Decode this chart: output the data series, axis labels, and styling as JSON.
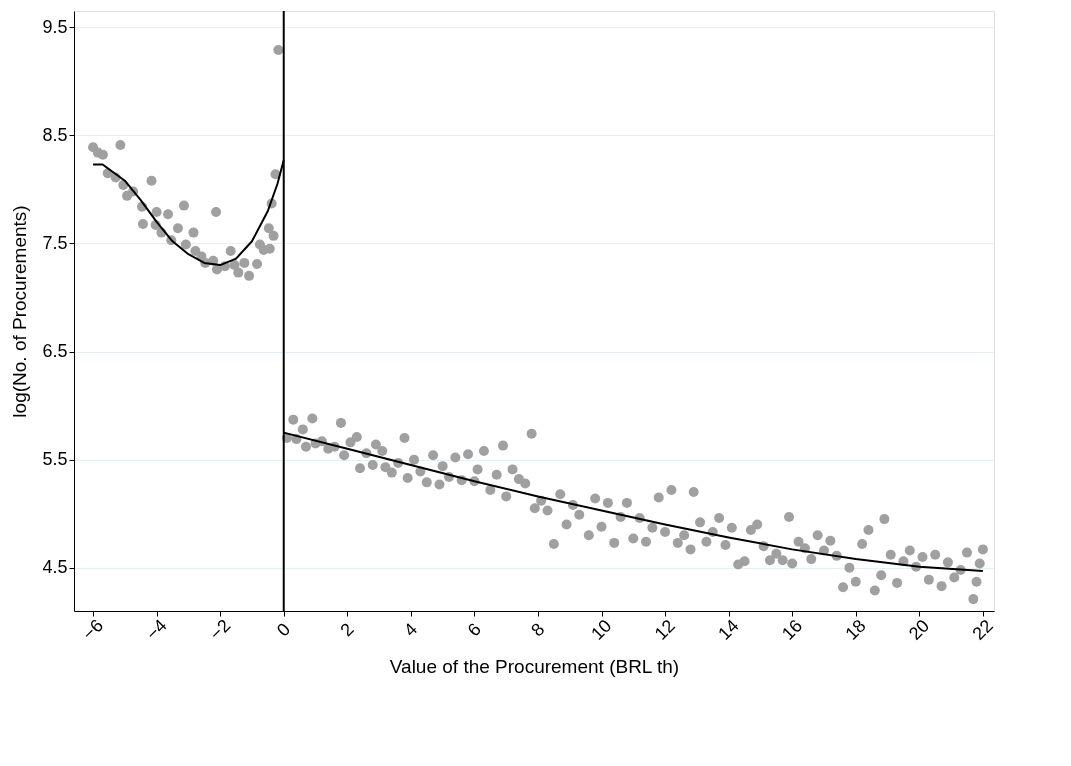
{
  "chart_data": {
    "type": "scatter",
    "xlabel": "Value of the Procurement (BRL th)",
    "ylabel": "log(No. of Procurements)",
    "xlim": [
      -6.6,
      22.35
    ],
    "ylim": [
      4.1,
      9.65
    ],
    "xticks": [
      -6,
      -4,
      -2,
      0,
      2,
      4,
      6,
      8,
      10,
      12,
      14,
      16,
      18,
      20,
      22
    ],
    "yticks": [
      4.5,
      5.5,
      6.5,
      7.5,
      8.5,
      9.5
    ],
    "grid": "y",
    "marker": "circle",
    "series": [
      {
        "color": "#a0a0a0",
        "x": [
          -6.0,
          -5.85,
          -5.69,
          -5.14,
          -5.54,
          -5.29,
          -5.05,
          -4.93,
          -4.74,
          -4.46,
          -4.43,
          -4.16,
          -4.0,
          -4.03,
          -3.85,
          -3.64,
          -3.54,
          -3.33,
          -3.14,
          -3.08,
          -2.84,
          -2.78,
          -2.59,
          -2.47,
          -2.22,
          -2.13,
          -2.1,
          -1.85,
          -1.67,
          -1.55,
          -1.43,
          -1.24,
          -1.09,
          -0.84,
          -0.75,
          -0.63,
          -0.47,
          -0.44,
          -0.32,
          -0.38,
          -0.26,
          -0.17
        ],
        "values": [
          8.39,
          8.34,
          8.32,
          8.41,
          8.15,
          8.11,
          8.04,
          7.94,
          7.98,
          7.84,
          7.68,
          8.08,
          7.79,
          7.67,
          7.6,
          7.77,
          7.53,
          7.64,
          7.85,
          7.49,
          7.6,
          7.43,
          7.38,
          7.32,
          7.34,
          7.79,
          7.26,
          7.29,
          7.43,
          7.3,
          7.23,
          7.32,
          7.2,
          7.31,
          7.49,
          7.44,
          7.64,
          7.45,
          7.57,
          7.87,
          8.14,
          9.29
        ]
      },
      {
        "color": "#a0a0a0",
        "x": [
          0.1,
          0.3,
          0.4,
          0.6,
          0.7,
          0.9,
          1.0,
          1.2,
          1.4,
          1.6,
          1.8,
          1.9,
          2.1,
          2.3,
          2.4,
          2.6,
          2.8,
          2.9,
          3.1,
          3.2,
          3.4,
          3.6,
          3.8,
          3.9,
          4.1,
          4.3,
          4.5,
          4.7,
          4.9,
          5.0,
          5.2,
          5.4,
          5.6,
          5.8,
          6.0,
          6.1,
          6.3,
          6.5,
          6.7,
          6.9,
          7.0,
          7.2,
          7.4,
          7.6,
          7.8,
          7.9,
          8.1,
          8.3,
          8.5,
          8.7,
          8.9,
          9.1,
          9.3,
          9.6,
          9.8,
          10.0,
          10.2,
          10.4,
          10.6,
          10.8,
          11.0,
          11.2,
          11.4,
          11.6,
          11.8,
          12.0,
          12.2,
          12.4,
          12.6,
          12.8,
          12.9,
          13.1,
          13.3,
          13.5,
          13.7,
          13.9,
          14.1,
          14.3,
          14.5,
          14.7,
          14.9,
          15.1,
          15.3,
          15.5,
          15.7,
          15.9,
          16.0,
          16.2,
          16.4,
          16.6,
          16.8,
          17.0,
          17.2,
          17.4,
          17.6,
          17.8,
          18.0,
          18.2,
          18.4,
          18.6,
          18.8,
          18.9,
          19.1,
          19.3,
          19.5,
          19.7,
          19.9,
          20.1,
          20.3,
          20.5,
          20.7,
          20.9,
          21.1,
          21.3,
          21.5,
          21.7,
          21.8,
          22.0,
          21.9
        ],
        "values": [
          5.7,
          5.87,
          5.69,
          5.78,
          5.62,
          5.88,
          5.65,
          5.67,
          5.6,
          5.62,
          5.84,
          5.54,
          5.66,
          5.71,
          5.42,
          5.56,
          5.45,
          5.64,
          5.58,
          5.43,
          5.38,
          5.47,
          5.7,
          5.33,
          5.5,
          5.39,
          5.29,
          5.54,
          5.27,
          5.44,
          5.34,
          5.52,
          5.31,
          5.55,
          5.3,
          5.41,
          5.58,
          5.22,
          5.36,
          5.63,
          5.16,
          5.41,
          5.32,
          5.28,
          5.74,
          5.05,
          5.12,
          5.03,
          4.72,
          5.18,
          4.9,
          5.08,
          4.99,
          4.8,
          5.14,
          4.88,
          5.1,
          4.73,
          4.97,
          5.1,
          4.77,
          4.96,
          4.74,
          4.87,
          5.15,
          4.83,
          5.22,
          4.73,
          4.8,
          4.67,
          5.2,
          4.92,
          4.74,
          4.83,
          4.96,
          4.71,
          4.87,
          4.53,
          4.56,
          4.85,
          4.9,
          4.7,
          4.57,
          4.63,
          4.57,
          4.97,
          4.54,
          4.74,
          4.68,
          4.58,
          4.8,
          4.66,
          4.75,
          4.61,
          4.32,
          4.5,
          4.37,
          4.72,
          4.85,
          4.29,
          4.43,
          4.95,
          4.62,
          4.36,
          4.56,
          4.66,
          4.51,
          4.6,
          4.39,
          4.62,
          4.33,
          4.55,
          4.41,
          4.48,
          4.64,
          4.21,
          4.37,
          4.67,
          4.54
        ]
      },
      {
        "type": "line",
        "marker": "none",
        "color": "#000000",
        "x": [
          -6,
          -5.7,
          -5,
          -4.5,
          -4,
          -3.5,
          -3,
          -2.5,
          -2,
          -1.5,
          -1,
          -0.5,
          -0.2,
          0
        ],
        "values": [
          8.23,
          8.23,
          8.08,
          7.9,
          7.7,
          7.52,
          7.4,
          7.32,
          7.3,
          7.36,
          7.52,
          7.8,
          8.05,
          8.27
        ]
      },
      {
        "type": "line",
        "marker": "none",
        "color": "#000000",
        "x": [
          0,
          2,
          4,
          6,
          8,
          10,
          12,
          14,
          16,
          18,
          20,
          22
        ],
        "values": [
          5.75,
          5.6,
          5.45,
          5.3,
          5.16,
          5.03,
          4.9,
          4.78,
          4.67,
          4.58,
          4.51,
          4.47
        ]
      }
    ],
    "ref_lines": [
      {
        "axis": "x",
        "value": 0,
        "color": "#000000"
      }
    ]
  }
}
